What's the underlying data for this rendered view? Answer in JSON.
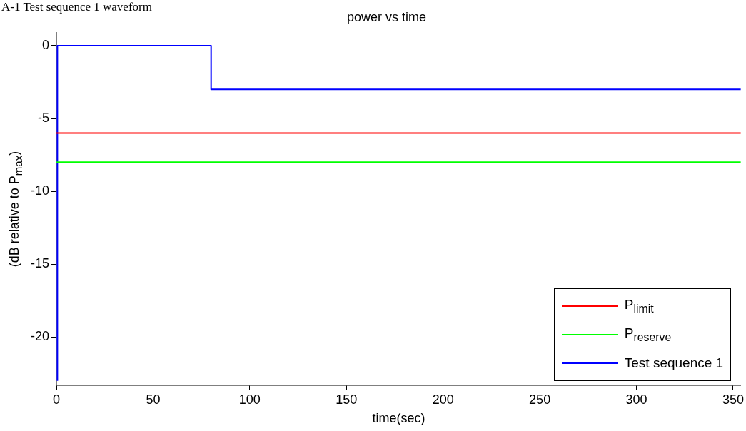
{
  "chart_data": {
    "type": "line",
    "title": "power vs time",
    "xlabel": "time(sec)",
    "ylabel": "(dB relative to P$_{max}$)",
    "annotations": [
      "A-1 Test sequence 1 waveform"
    ],
    "xlim": [
      0,
      354
    ],
    "xticks": [
      0,
      50,
      100,
      150,
      200,
      250,
      300,
      350
    ],
    "ylim": [
      -23.3,
      0.9
    ],
    "yticks": [
      -20,
      -15,
      -10,
      -5,
      0
    ],
    "grid": false,
    "legend": "bottom right",
    "series": [
      {
        "name": "P$_{limit}$",
        "color": "#ff0000",
        "x": [
          0,
          354
        ],
        "values": [
          -6,
          -6
        ]
      },
      {
        "name": "P$_{reserve}$",
        "color": "#00ff00",
        "x": [
          0,
          354
        ],
        "values": [
          -8,
          -8
        ]
      },
      {
        "name": "Test sequence 1",
        "color": "#0000ff",
        "x": [
          0.5,
          0.5,
          80,
          80,
          354
        ],
        "values": [
          -23,
          0,
          0,
          -3,
          -3
        ]
      }
    ]
  }
}
